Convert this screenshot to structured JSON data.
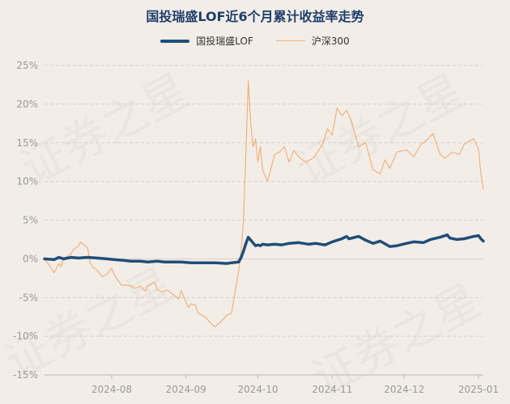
{
  "title": "国投瑞盛LOF近6个月累计收益率走势",
  "colors": {
    "fund": "#1f4e79",
    "index": "#f0b27a",
    "grid": "#d6d0cb",
    "axis_text": "#999999",
    "title": "#1f3f6b"
  },
  "chart_data": {
    "type": "line",
    "title": "国投瑞盛LOF近6个月累计收益率走势",
    "xlabel": "",
    "ylabel": "",
    "ylim": [
      -15,
      25
    ],
    "yticks": [
      25,
      20,
      15,
      10,
      5,
      0,
      -5,
      -10,
      -15
    ],
    "ytick_labels": [
      "25%",
      "20%",
      "15%",
      "10%",
      "5%",
      "0%",
      "-5%",
      "-10%",
      "-15%"
    ],
    "xticks": [
      "2024-08",
      "2024-09",
      "2024-10",
      "2024-11",
      "2024-12",
      "2025-01"
    ],
    "xrange": [
      "2024-07-04",
      "2025-01-03"
    ],
    "grid": "horizontal dashed",
    "legend_position": "top-center",
    "series": [
      {
        "name": "国投瑞盛LOF",
        "color": "#1f4e79",
        "points": [
          [
            "2024-07-04",
            0.0
          ],
          [
            "2024-07-08",
            -0.1
          ],
          [
            "2024-07-10",
            0.2
          ],
          [
            "2024-07-12",
            0.0
          ],
          [
            "2024-07-15",
            0.2
          ],
          [
            "2024-07-18",
            0.1
          ],
          [
            "2024-07-22",
            0.2
          ],
          [
            "2024-07-26",
            0.1
          ],
          [
            "2024-07-30",
            0.0
          ],
          [
            "2024-08-02",
            -0.1
          ],
          [
            "2024-08-06",
            -0.2
          ],
          [
            "2024-08-09",
            -0.3
          ],
          [
            "2024-08-13",
            -0.3
          ],
          [
            "2024-08-16",
            -0.4
          ],
          [
            "2024-08-20",
            -0.3
          ],
          [
            "2024-08-23",
            -0.4
          ],
          [
            "2024-08-27",
            -0.4
          ],
          [
            "2024-08-30",
            -0.4
          ],
          [
            "2024-09-03",
            -0.5
          ],
          [
            "2024-09-06",
            -0.5
          ],
          [
            "2024-09-10",
            -0.5
          ],
          [
            "2024-09-13",
            -0.5
          ],
          [
            "2024-09-18",
            -0.6
          ],
          [
            "2024-09-20",
            -0.5
          ],
          [
            "2024-09-23",
            -0.4
          ],
          [
            "2024-09-24",
            0.2
          ],
          [
            "2024-09-25",
            1.0
          ],
          [
            "2024-09-26",
            2.0
          ],
          [
            "2024-09-27",
            2.8
          ],
          [
            "2024-09-30",
            1.7
          ],
          [
            "2024-10-01",
            1.8
          ],
          [
            "2024-10-02",
            1.7
          ],
          [
            "2024-10-03",
            1.9
          ],
          [
            "2024-10-05",
            1.8
          ],
          [
            "2024-10-08",
            1.9
          ],
          [
            "2024-10-11",
            1.8
          ],
          [
            "2024-10-14",
            2.0
          ],
          [
            "2024-10-18",
            2.1
          ],
          [
            "2024-10-22",
            1.9
          ],
          [
            "2024-10-25",
            2.0
          ],
          [
            "2024-10-29",
            1.8
          ],
          [
            "2024-11-01",
            2.2
          ],
          [
            "2024-11-05",
            2.6
          ],
          [
            "2024-11-07",
            2.9
          ],
          [
            "2024-11-08",
            2.6
          ],
          [
            "2024-11-12",
            2.9
          ],
          [
            "2024-11-15",
            2.4
          ],
          [
            "2024-11-18",
            2.0
          ],
          [
            "2024-11-21",
            2.3
          ],
          [
            "2024-11-25",
            1.6
          ],
          [
            "2024-11-28",
            1.7
          ],
          [
            "2024-12-02",
            2.0
          ],
          [
            "2024-12-05",
            2.2
          ],
          [
            "2024-12-09",
            2.1
          ],
          [
            "2024-12-12",
            2.5
          ],
          [
            "2024-12-16",
            2.8
          ],
          [
            "2024-12-19",
            3.1
          ],
          [
            "2024-12-20",
            2.7
          ],
          [
            "2024-12-23",
            2.5
          ],
          [
            "2024-12-26",
            2.6
          ],
          [
            "2024-12-30",
            2.9
          ],
          [
            "2025-01-01",
            3.0
          ],
          [
            "2025-01-02",
            2.6
          ],
          [
            "2025-01-03",
            2.3
          ]
        ]
      },
      {
        "name": "沪深300",
        "color": "#f0b27a",
        "points": [
          [
            "2024-07-04",
            0.0
          ],
          [
            "2024-07-06",
            -0.8
          ],
          [
            "2024-07-08",
            -1.8
          ],
          [
            "2024-07-10",
            -0.6
          ],
          [
            "2024-07-11",
            -1.0
          ],
          [
            "2024-07-12",
            0.1
          ],
          [
            "2024-07-15",
            0.6
          ],
          [
            "2024-07-16",
            1.2
          ],
          [
            "2024-07-18",
            1.6
          ],
          [
            "2024-07-19",
            2.2
          ],
          [
            "2024-07-22",
            1.4
          ],
          [
            "2024-07-23",
            -0.5
          ],
          [
            "2024-07-24",
            -1.0
          ],
          [
            "2024-07-26",
            -1.5
          ],
          [
            "2024-07-28",
            -2.3
          ],
          [
            "2024-07-30",
            -2.0
          ],
          [
            "2024-08-01",
            -1.2
          ],
          [
            "2024-08-02",
            -2.0
          ],
          [
            "2024-08-05",
            -3.4
          ],
          [
            "2024-08-07",
            -3.4
          ],
          [
            "2024-08-09",
            -3.5
          ],
          [
            "2024-08-11",
            -3.8
          ],
          [
            "2024-08-13",
            -3.5
          ],
          [
            "2024-08-15",
            -4.2
          ],
          [
            "2024-08-16",
            -3.5
          ],
          [
            "2024-08-19",
            -3.0
          ],
          [
            "2024-08-20",
            -4.0
          ],
          [
            "2024-08-22",
            -4.3
          ],
          [
            "2024-08-24",
            -4.0
          ],
          [
            "2024-08-27",
            -4.7
          ],
          [
            "2024-08-29",
            -5.2
          ],
          [
            "2024-08-30",
            -4.1
          ],
          [
            "2024-09-02",
            -6.3
          ],
          [
            "2024-09-03",
            -5.8
          ],
          [
            "2024-09-05",
            -6.0
          ],
          [
            "2024-09-06",
            -7.0
          ],
          [
            "2024-09-09",
            -7.5
          ],
          [
            "2024-09-11",
            -8.2
          ],
          [
            "2024-09-13",
            -8.8
          ],
          [
            "2024-09-16",
            -8.0
          ],
          [
            "2024-09-18",
            -7.3
          ],
          [
            "2024-09-20",
            -7.0
          ],
          [
            "2024-09-23",
            -1.5
          ],
          [
            "2024-09-24",
            1.0
          ],
          [
            "2024-09-25",
            5.0
          ],
          [
            "2024-09-26",
            14.0
          ],
          [
            "2024-09-27",
            23.0
          ],
          [
            "2024-09-28",
            17.5
          ],
          [
            "2024-09-29",
            14.5
          ],
          [
            "2024-09-30",
            15.5
          ],
          [
            "2024-10-01",
            12.5
          ],
          [
            "2024-10-02",
            14.5
          ],
          [
            "2024-10-03",
            11.5
          ],
          [
            "2024-10-05",
            10.0
          ],
          [
            "2024-10-08",
            13.5
          ],
          [
            "2024-10-10",
            13.8
          ],
          [
            "2024-10-12",
            14.5
          ],
          [
            "2024-10-14",
            12.5
          ],
          [
            "2024-10-16",
            14.0
          ],
          [
            "2024-10-18",
            13.2
          ],
          [
            "2024-10-21",
            12.5
          ],
          [
            "2024-10-24",
            13.0
          ],
          [
            "2024-10-28",
            14.8
          ],
          [
            "2024-10-30",
            16.8
          ],
          [
            "2024-11-01",
            16.0
          ],
          [
            "2024-11-03",
            19.5
          ],
          [
            "2024-11-05",
            18.5
          ],
          [
            "2024-11-07",
            19.2
          ],
          [
            "2024-11-09",
            17.8
          ],
          [
            "2024-11-12",
            14.5
          ],
          [
            "2024-11-15",
            15.0
          ],
          [
            "2024-11-18",
            11.5
          ],
          [
            "2024-11-21",
            11.0
          ],
          [
            "2024-11-23",
            12.8
          ],
          [
            "2024-11-25",
            11.7
          ],
          [
            "2024-11-28",
            13.8
          ],
          [
            "2024-12-02",
            14.1
          ],
          [
            "2024-12-05",
            13.2
          ],
          [
            "2024-12-08",
            14.8
          ],
          [
            "2024-12-11",
            15.5
          ],
          [
            "2024-12-13",
            16.2
          ],
          [
            "2024-12-16",
            13.5
          ],
          [
            "2024-12-18",
            13.0
          ],
          [
            "2024-12-21",
            13.8
          ],
          [
            "2024-12-24",
            13.5
          ],
          [
            "2024-12-26",
            14.8
          ],
          [
            "2024-12-28",
            15.2
          ],
          [
            "2024-12-30",
            15.5
          ],
          [
            "2025-01-01",
            14.2
          ],
          [
            "2025-01-02",
            11.0
          ],
          [
            "2025-01-03",
            9.0
          ]
        ]
      }
    ]
  }
}
